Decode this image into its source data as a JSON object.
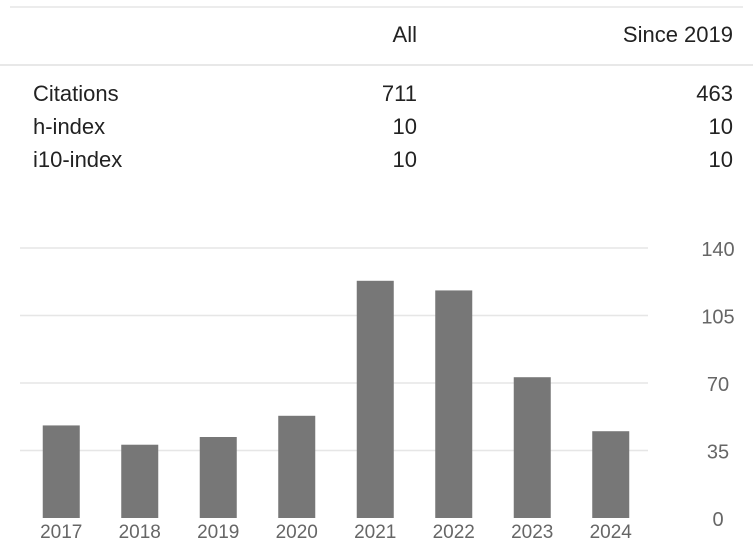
{
  "table": {
    "headers": {
      "all": "All",
      "since": "Since 2019"
    },
    "rows": [
      {
        "label": "Citations",
        "all": "711",
        "since": "463"
      },
      {
        "label": "h-index",
        "all": "10",
        "since": "10"
      },
      {
        "label": "i10-index",
        "all": "10",
        "since": "10"
      }
    ]
  },
  "colors": {
    "bar": "#777777",
    "grid": "#e6e6e6",
    "axis_text": "#666666"
  },
  "chart_data": {
    "type": "bar",
    "title": "",
    "xlabel": "",
    "ylabel": "",
    "categories": [
      "2017",
      "2018",
      "2019",
      "2020",
      "2021",
      "2022",
      "2023",
      "2024"
    ],
    "values": [
      48,
      38,
      42,
      53,
      123,
      118,
      73,
      45
    ],
    "ylim": [
      0,
      140
    ],
    "yticks": [
      "0",
      "35",
      "70",
      "105",
      "140"
    ],
    "y_axis_side": "right",
    "grid": true
  }
}
